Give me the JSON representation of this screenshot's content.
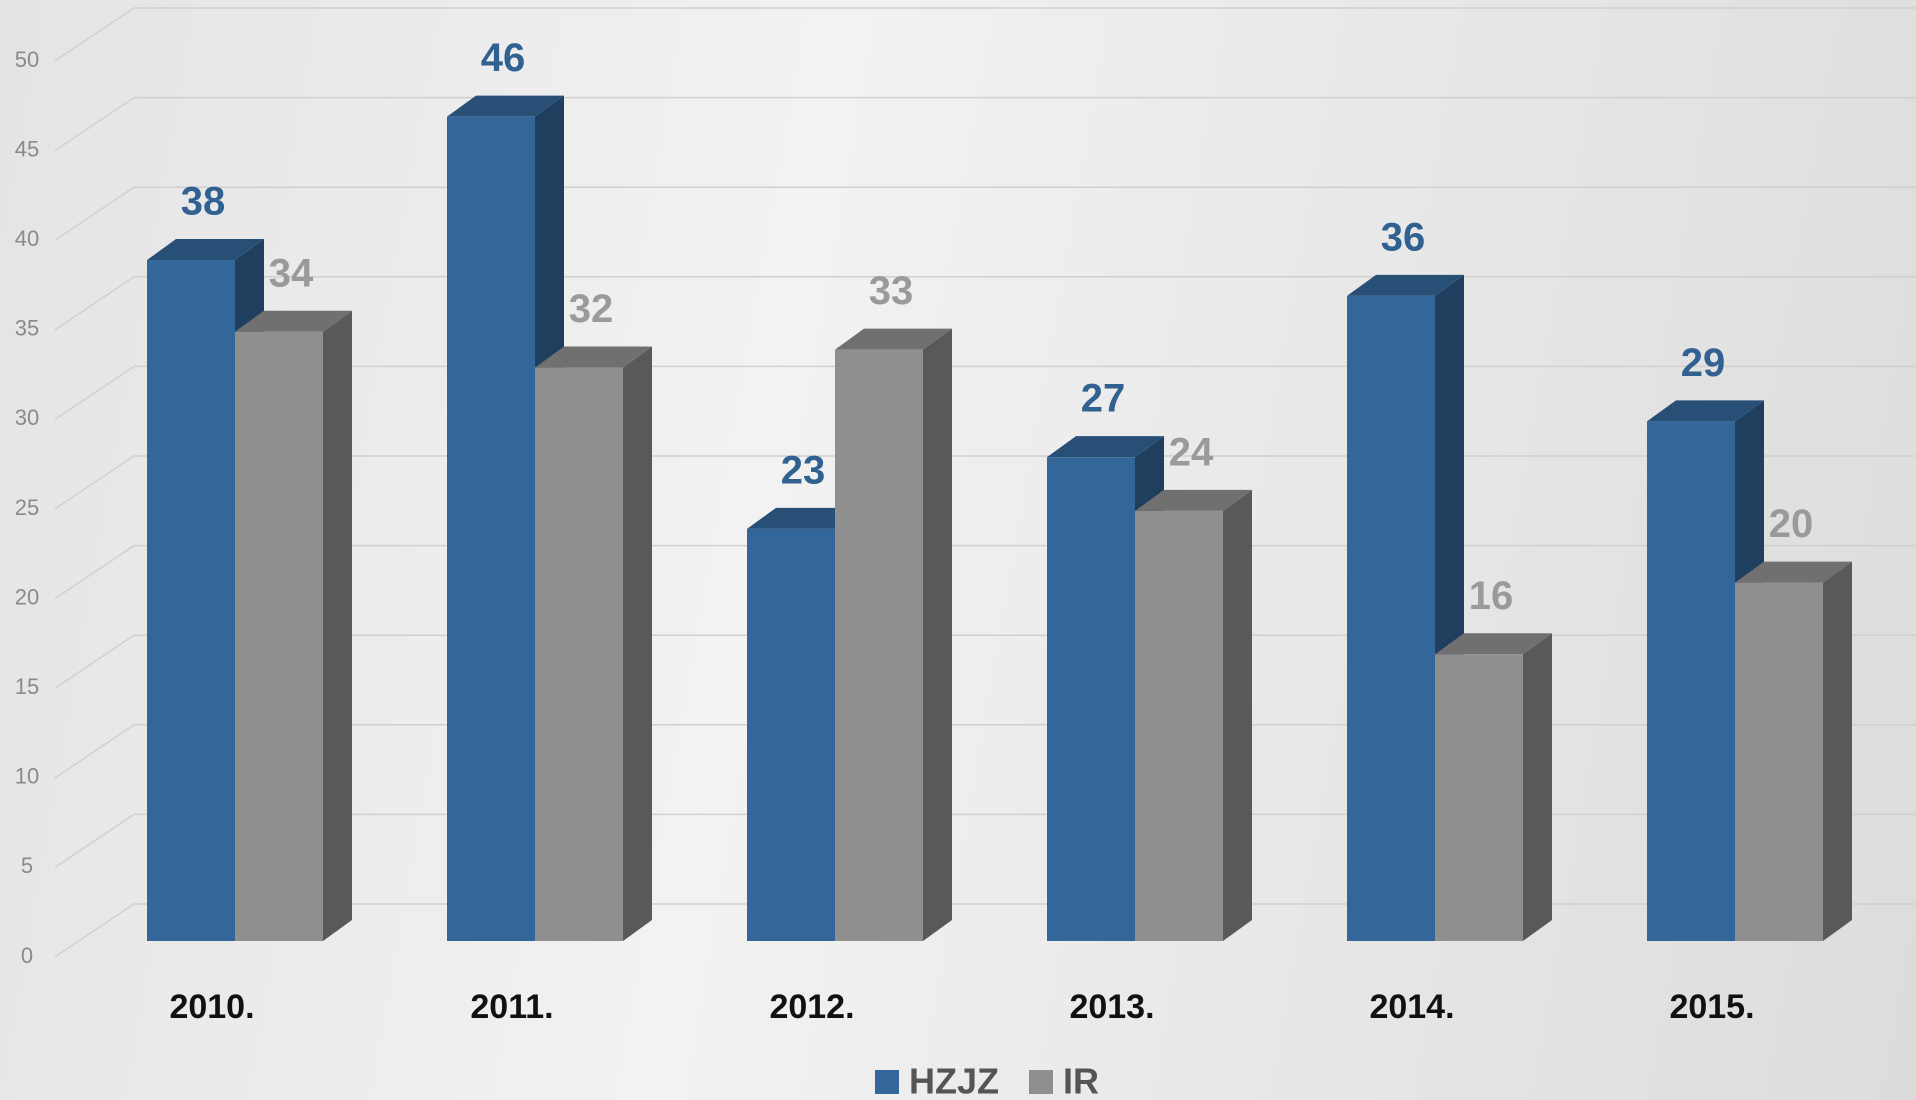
{
  "chart_data": {
    "type": "bar3d",
    "categories": [
      "2010.",
      "2011.",
      "2012.",
      "2013.",
      "2014.",
      "2015."
    ],
    "series": [
      {
        "name": "HZJZ",
        "color": "#336699",
        "values": [
          38,
          46,
          23,
          27,
          36,
          29
        ]
      },
      {
        "name": "IR",
        "color": "#8f8f8f",
        "values": [
          34,
          32,
          33,
          24,
          16,
          20
        ]
      }
    ],
    "ylim": [
      0,
      50
    ],
    "yticks": [
      0,
      5,
      10,
      15,
      20,
      25,
      30,
      35,
      40,
      45,
      50
    ],
    "grid": true,
    "legend": "bottom"
  }
}
